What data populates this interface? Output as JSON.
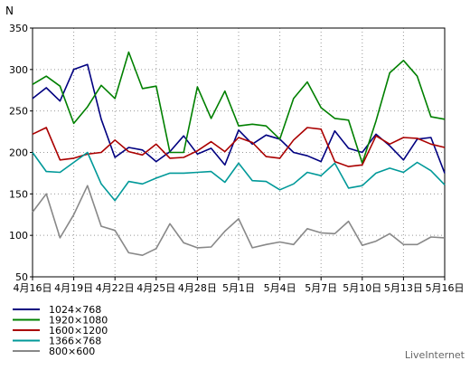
{
  "chart_data": {
    "type": "line",
    "ylabel": "N",
    "ylim": [
      50,
      350
    ],
    "yticks": [
      50,
      100,
      150,
      200,
      250,
      300,
      350
    ],
    "grid": true,
    "legend_position": "bottom-left",
    "x_tick_labels": [
      "4月16日",
      "4月19日",
      "4月22日",
      "4月25日",
      "4月28日",
      "5月1日",
      "5月4日",
      "5月7日",
      "5月10日",
      "5月13日",
      "5月16日"
    ],
    "x_tick_index": [
      0,
      3,
      6,
      9,
      12,
      15,
      18,
      21,
      24,
      27,
      30
    ],
    "series": [
      {
        "name": "1024×768",
        "color": "#000080",
        "values": [
          265,
          278,
          262,
          300,
          306,
          240,
          194,
          206,
          203,
          189,
          201,
          220,
          198,
          205,
          185,
          227,
          210,
          221,
          216,
          200,
          196,
          189,
          226,
          205,
          200,
          222,
          208,
          191,
          216,
          218,
          175
        ]
      },
      {
        "name": "1920×1080",
        "color": "#008000",
        "values": [
          282,
          292,
          280,
          235,
          255,
          281,
          265,
          321,
          277,
          280,
          200,
          200,
          279,
          241,
          274,
          232,
          234,
          232,
          216,
          265,
          285,
          254,
          241,
          239,
          187,
          238,
          296,
          311,
          292,
          243,
          240
        ]
      },
      {
        "name": "1600×1200",
        "color": "#aa0000",
        "values": [
          222,
          230,
          191,
          193,
          198,
          200,
          215,
          201,
          197,
          210,
          193,
          194,
          202,
          213,
          201,
          218,
          212,
          195,
          193,
          215,
          230,
          228,
          189,
          183,
          185,
          220,
          210,
          218,
          217,
          210,
          206
        ]
      },
      {
        "name": "1366×768",
        "color": "#009999",
        "values": [
          200,
          177,
          176,
          188,
          200,
          162,
          142,
          165,
          162,
          169,
          175,
          175,
          176,
          177,
          164,
          187,
          166,
          165,
          155,
          162,
          176,
          172,
          187,
          157,
          160,
          175,
          181,
          176,
          188,
          178,
          161
        ]
      },
      {
        "name": "800×600",
        "color": "#888888",
        "values": [
          128,
          150,
          97,
          125,
          160,
          111,
          106,
          79,
          76,
          84,
          114,
          91,
          85,
          86,
          105,
          120,
          85,
          89,
          92,
          89,
          108,
          103,
          102,
          117,
          88,
          93,
          102,
          89,
          89,
          98,
          97
        ]
      }
    ]
  },
  "watermark": "LiveInternet"
}
